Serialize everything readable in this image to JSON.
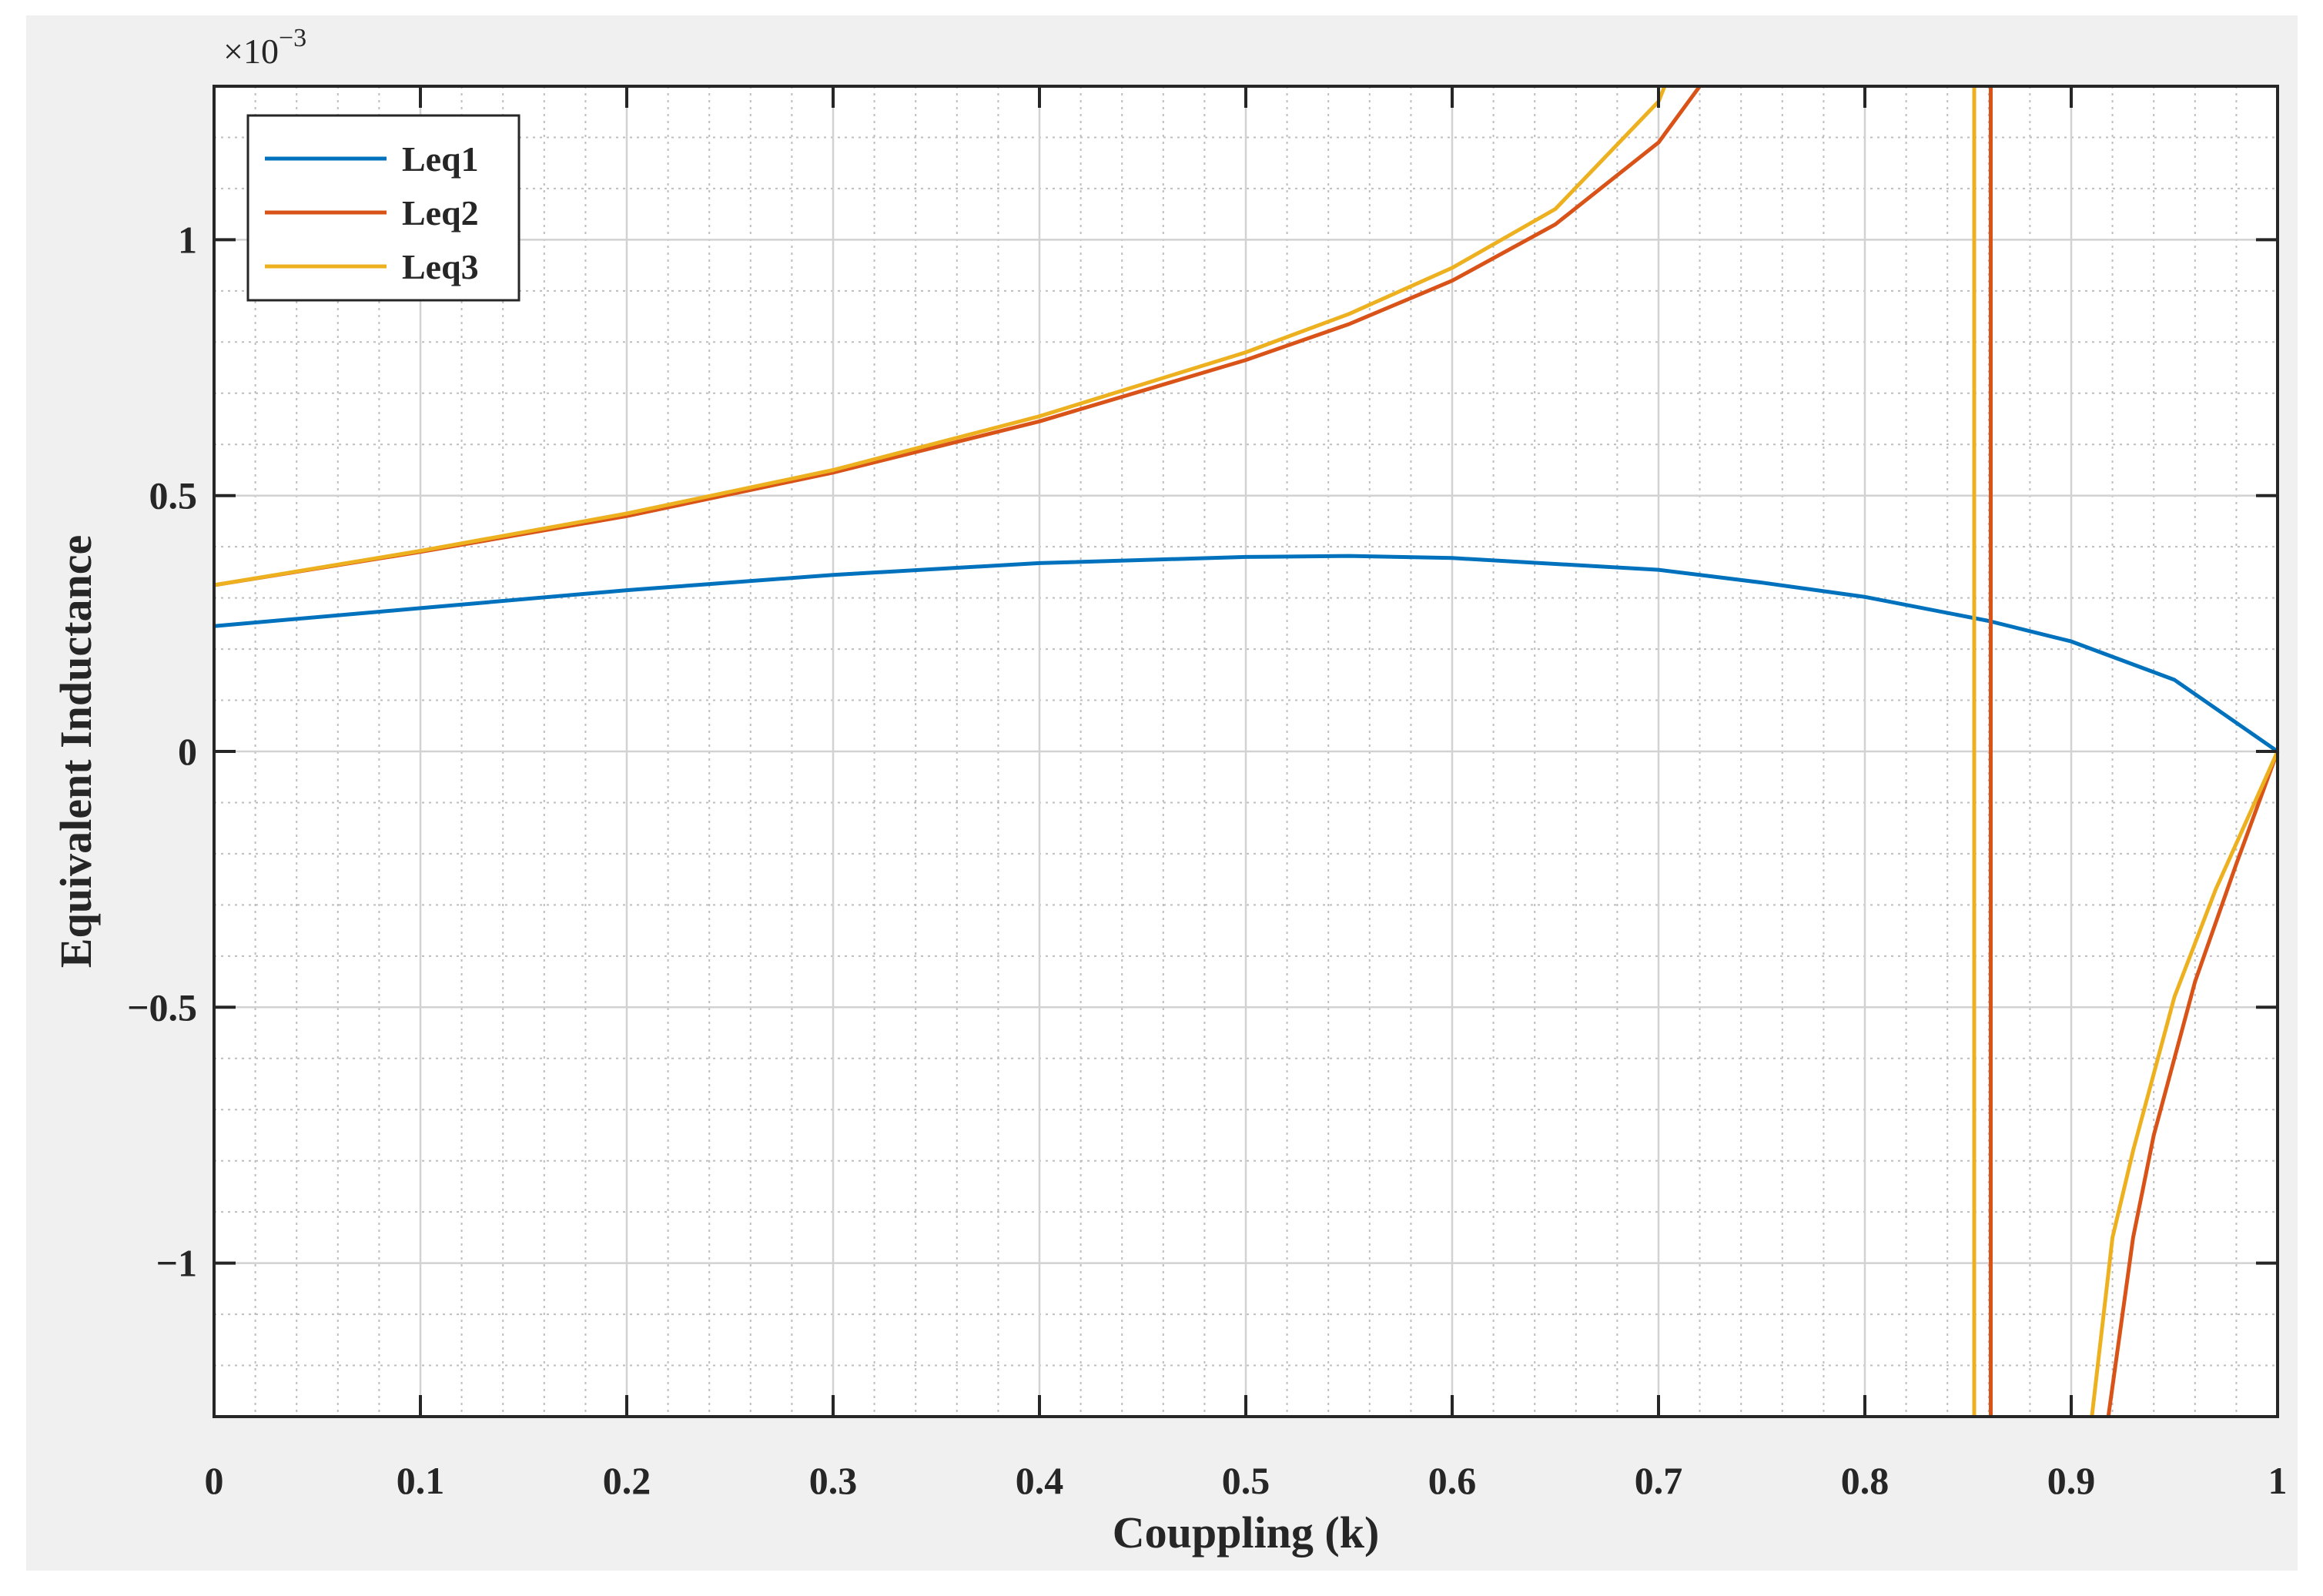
{
  "chart_data": {
    "type": "line",
    "xlabel": "Couppling (k)",
    "ylabel": "Equivalent Inductance",
    "y_multiplier": "×10",
    "y_multiplier_exp": "−3",
    "xlim": [
      0,
      1
    ],
    "ylim": [
      -1.3,
      1.3
    ],
    "x_ticks": [
      0,
      0.1,
      0.2,
      0.3,
      0.4,
      0.5,
      0.6,
      0.7,
      0.8,
      0.9,
      1
    ],
    "x_tick_labels": [
      "0",
      "0.1",
      "0.2",
      "0.3",
      "0.4",
      "0.5",
      "0.6",
      "0.7",
      "0.8",
      "0.9",
      "1"
    ],
    "y_ticks": [
      -1,
      -0.5,
      0,
      0.5,
      1
    ],
    "y_tick_labels": [
      "−1",
      "−0.5",
      "0",
      "0.5",
      "1"
    ],
    "grid": "major and minor",
    "legend_position": "top-left",
    "series": [
      {
        "name": "Leq1",
        "color": "#0072bd",
        "segments": [
          [
            [
              0,
              0.245
            ],
            [
              0.1,
              0.28
            ],
            [
              0.2,
              0.315
            ],
            [
              0.3,
              0.345
            ],
            [
              0.4,
              0.368
            ],
            [
              0.5,
              0.38
            ],
            [
              0.55,
              0.382
            ],
            [
              0.6,
              0.378
            ],
            [
              0.7,
              0.355
            ],
            [
              0.75,
              0.33
            ],
            [
              0.8,
              0.302
            ],
            [
              0.86,
              0.255
            ],
            [
              0.9,
              0.215
            ],
            [
              0.95,
              0.14
            ],
            [
              1,
              0.0
            ]
          ]
        ]
      },
      {
        "name": "Leq2",
        "color": "#d95319",
        "segments": [
          [
            [
              0,
              0.325
            ],
            [
              0.1,
              0.39
            ],
            [
              0.2,
              0.46
            ],
            [
              0.3,
              0.545
            ],
            [
              0.4,
              0.645
            ],
            [
              0.5,
              0.765
            ],
            [
              0.55,
              0.835
            ],
            [
              0.6,
              0.92
            ],
            [
              0.65,
              1.03
            ],
            [
              0.7,
              1.19
            ],
            [
              0.72,
              1.3
            ]
          ],
          [
            [
              0.861,
              1.3
            ],
            [
              0.861,
              -1.3
            ]
          ],
          [
            [
              0.918,
              -1.3
            ],
            [
              0.93,
              -0.95
            ],
            [
              0.94,
              -0.75
            ],
            [
              0.96,
              -0.45
            ],
            [
              0.98,
              -0.22
            ],
            [
              1,
              0.0
            ]
          ]
        ]
      },
      {
        "name": "Leq3",
        "color": "#edb120",
        "segments": [
          [
            [
              0,
              0.325
            ],
            [
              0.1,
              0.392
            ],
            [
              0.2,
              0.465
            ],
            [
              0.3,
              0.55
            ],
            [
              0.4,
              0.655
            ],
            [
              0.5,
              0.78
            ],
            [
              0.55,
              0.855
            ],
            [
              0.6,
              0.945
            ],
            [
              0.65,
              1.06
            ],
            [
              0.7,
              1.27
            ],
            [
              0.703,
              1.3
            ]
          ],
          [
            [
              0.853,
              1.3
            ],
            [
              0.853,
              -1.3
            ]
          ],
          [
            [
              0.91,
              -1.3
            ],
            [
              0.92,
              -0.95
            ],
            [
              0.93,
              -0.78
            ],
            [
              0.95,
              -0.48
            ],
            [
              0.97,
              -0.27
            ],
            [
              1,
              0.0
            ]
          ]
        ]
      }
    ]
  }
}
